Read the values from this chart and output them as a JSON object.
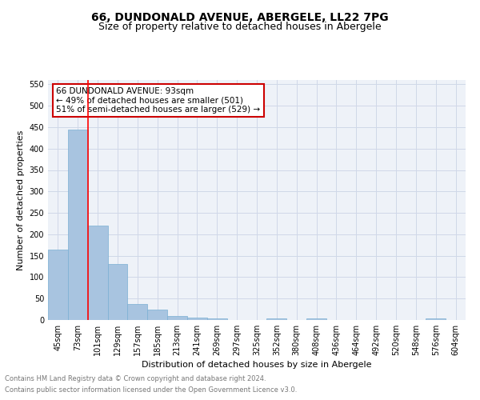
{
  "title": "66, DUNDONALD AVENUE, ABERGELE, LL22 7PG",
  "subtitle": "Size of property relative to detached houses in Abergele",
  "xlabel": "Distribution of detached houses by size in Abergele",
  "ylabel": "Number of detached properties",
  "footnote1": "Contains HM Land Registry data © Crown copyright and database right 2024.",
  "footnote2": "Contains public sector information licensed under the Open Government Licence v3.0.",
  "bin_labels": [
    "45sqm",
    "73sqm",
    "101sqm",
    "129sqm",
    "157sqm",
    "185sqm",
    "213sqm",
    "241sqm",
    "269sqm",
    "297sqm",
    "325sqm",
    "352sqm",
    "380sqm",
    "408sqm",
    "436sqm",
    "464sqm",
    "492sqm",
    "520sqm",
    "548sqm",
    "576sqm",
    "604sqm"
  ],
  "bar_values": [
    165,
    445,
    220,
    130,
    37,
    25,
    10,
    5,
    3,
    0,
    0,
    4,
    0,
    4,
    0,
    0,
    0,
    0,
    0,
    4,
    0
  ],
  "bar_color": "#a8c4e0",
  "bar_edge_color": "#7aafd4",
  "red_line_x": 1.5,
  "annotation_text": "66 DUNDONALD AVENUE: 93sqm\n← 49% of detached houses are smaller (501)\n51% of semi-detached houses are larger (529) →",
  "annotation_box_color": "#ffffff",
  "annotation_box_edge": "#cc0000",
  "ylim": [
    0,
    560
  ],
  "yticks": [
    0,
    50,
    100,
    150,
    200,
    250,
    300,
    350,
    400,
    450,
    500,
    550
  ],
  "grid_color": "#d0d8e8",
  "bg_color": "#eef2f8",
  "title_fontsize": 10,
  "subtitle_fontsize": 9,
  "axis_label_fontsize": 8,
  "tick_fontsize": 7,
  "annotation_fontsize": 7.5,
  "footnote_fontsize": 6,
  "footnote_color": "#777777"
}
